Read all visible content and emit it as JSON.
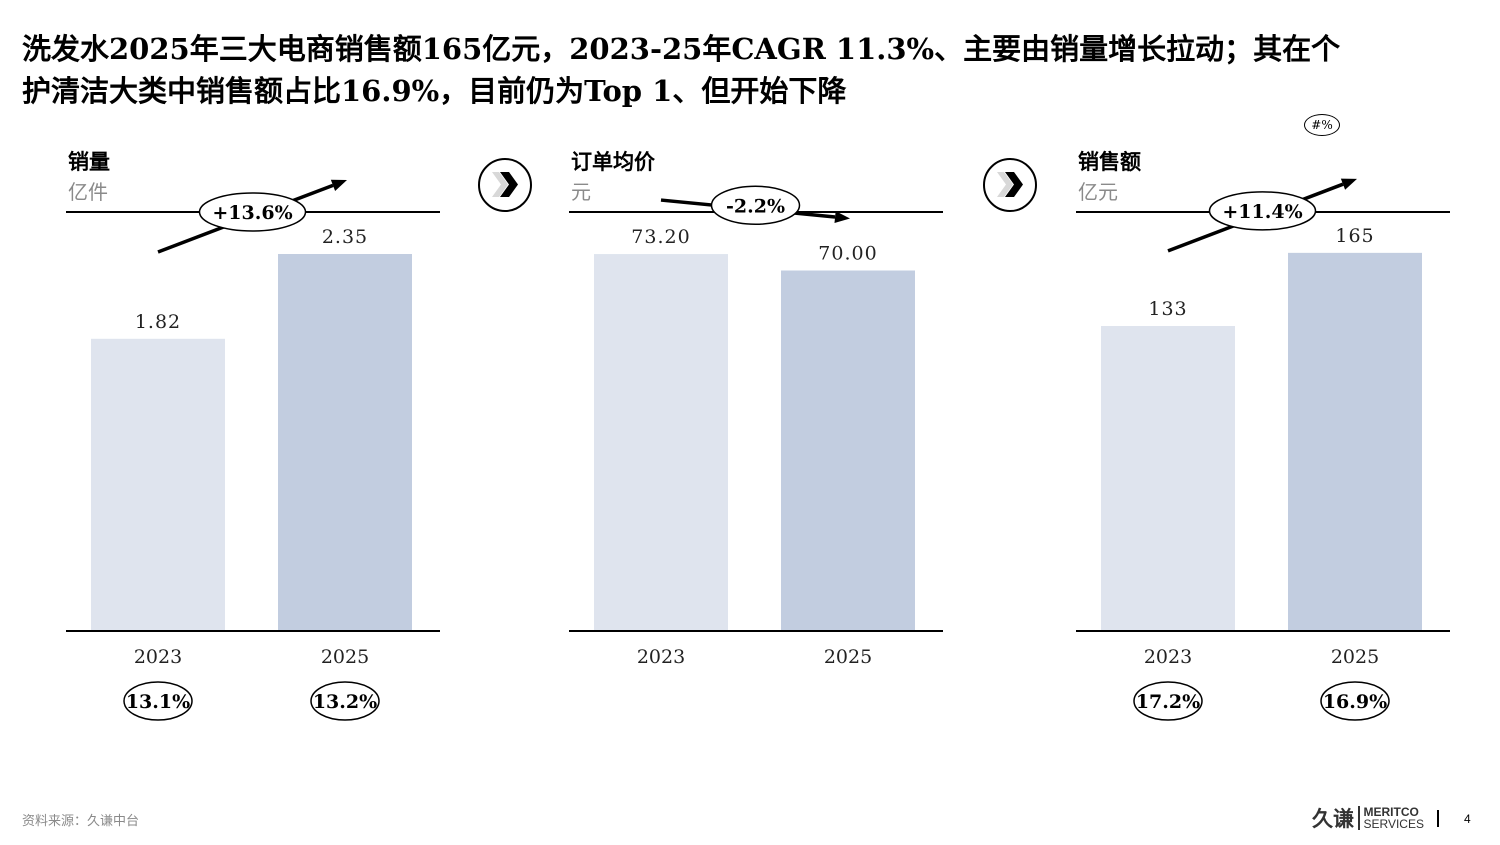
{
  "title": {
    "line1": "洗发水2025年三大电商销售额165亿元，2023-25年CAGR 11.3%、主要由销量增长拉动；其在个",
    "line2": "护清洁大类中销售额占比16.9%，目前仍为Top 1、但开始下降"
  },
  "legend_pill": "#%",
  "footer": {
    "source": "资料来源：久谦中台",
    "page_number": "4"
  },
  "logo": {
    "cn": "久谦",
    "en_line1": "MERITCO",
    "en_line2": "SERVICES"
  },
  "colors": {
    "bar_2023": "#dfe4ee",
    "bar_2025": "#c2cde0",
    "axis": "#000000",
    "unit_text": "#8a8a8a"
  },
  "icons": [
    "chevron-right-icon",
    "chevron-right-icon"
  ],
  "chart_data": [
    {
      "type": "bar",
      "title": "销量",
      "unit": "亿件",
      "categories": [
        "2023",
        "2025"
      ],
      "values": [
        1.82,
        2.35
      ],
      "value_labels": [
        "1.82",
        "2.35"
      ],
      "ylim": [
        0,
        2.6
      ],
      "growth_label": "+13.6%",
      "growth_direction": "up",
      "share_labels": [
        "13.1%",
        "13.2%"
      ]
    },
    {
      "type": "bar",
      "title": "订单均价",
      "unit": "元",
      "categories": [
        "2023",
        "2025"
      ],
      "values": [
        73.2,
        70.0
      ],
      "value_labels": [
        "73.20",
        "70.00"
      ],
      "ylim": [
        0,
        81
      ],
      "growth_label": "-2.2%",
      "growth_direction": "down",
      "share_labels": []
    },
    {
      "type": "bar",
      "title": "销售额",
      "unit": "亿元",
      "categories": [
        "2023",
        "2025"
      ],
      "values": [
        133,
        165
      ],
      "value_labels": [
        "133",
        "165"
      ],
      "ylim": [
        0,
        182
      ],
      "growth_label": "+11.4%",
      "growth_direction": "up",
      "share_labels": [
        "17.2%",
        "16.9%"
      ]
    }
  ]
}
